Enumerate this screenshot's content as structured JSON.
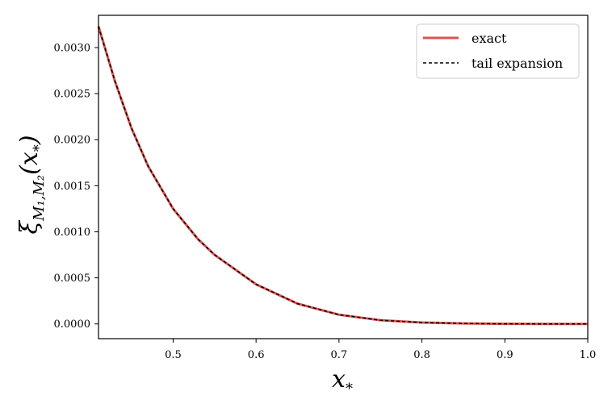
{
  "chart_data": {
    "type": "line",
    "xlabel": "x",
    "xlabel_sub": "*",
    "ylabel": "ξ",
    "ylabel_sub": "M₁,M₂",
    "ylabel_arg": "(x",
    "ylabel_arg_sub": "*",
    "ylabel_close": ")",
    "xlim": [
      0.41,
      1.0
    ],
    "ylim": [
      -0.00016,
      0.00335
    ],
    "x_ticks": [
      0.5,
      0.6,
      0.7,
      0.8,
      0.9,
      1.0
    ],
    "x_tick_labels": [
      "0.5",
      "0.6",
      "0.7",
      "0.8",
      "0.9",
      "1.0"
    ],
    "y_ticks": [
      0.0,
      0.0005,
      0.001,
      0.0015,
      0.002,
      0.0025,
      0.003
    ],
    "y_tick_labels": [
      "0.0000",
      "0.0005",
      "0.0010",
      "0.0015",
      "0.0020",
      "0.0025",
      "0.0030"
    ],
    "grid": false,
    "legend_position": "top-right",
    "series": [
      {
        "name": "exact",
        "color": "#d9534f",
        "style": "solid",
        "x": [
          0.41,
          0.43,
          0.45,
          0.47,
          0.5,
          0.53,
          0.55,
          0.6,
          0.65,
          0.7,
          0.75,
          0.8,
          0.85,
          0.9,
          0.95,
          1.0
        ],
        "y": [
          0.00323,
          0.00263,
          0.00212,
          0.00171,
          0.00125,
          0.00092,
          0.00075,
          0.00043,
          0.00022,
          0.0001,
          4e-05,
          1.5e-05,
          5e-06,
          1e-06,
          0.0,
          0.0
        ]
      },
      {
        "name": "tail expansion",
        "color": "#000000",
        "style": "dashed",
        "x": [
          0.41,
          0.43,
          0.45,
          0.47,
          0.5,
          0.53,
          0.55,
          0.6,
          0.65,
          0.7,
          0.75,
          0.8,
          0.85,
          0.9,
          0.95,
          1.0
        ],
        "y": [
          0.00323,
          0.00263,
          0.00212,
          0.00171,
          0.00125,
          0.00092,
          0.00075,
          0.00043,
          0.00022,
          0.0001,
          4e-05,
          1.5e-05,
          5e-06,
          1e-06,
          0.0,
          0.0
        ]
      }
    ]
  }
}
